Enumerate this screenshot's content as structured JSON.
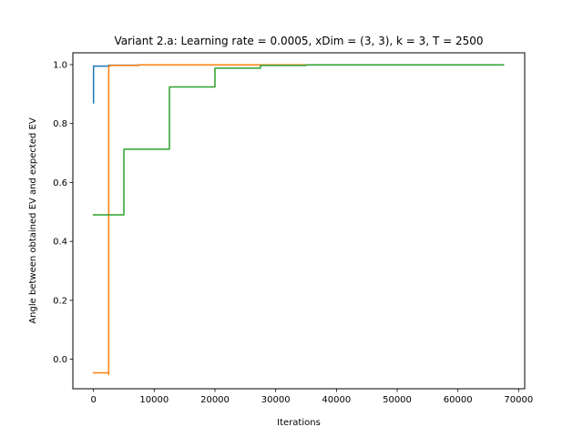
{
  "chart_data": {
    "type": "line",
    "title": "Variant 2.a: Learning rate = 0.0005, xDim = (3, 3), k = 3, T = 2500",
    "xlabel": "Iterations",
    "ylabel": "Angle between obtained EV and expected EV",
    "xlim": [
      -3400,
      71000
    ],
    "ylim": [
      -0.1,
      1.04
    ],
    "xticks": [
      0,
      10000,
      20000,
      30000,
      40000,
      50000,
      60000,
      70000
    ],
    "xtick_labels": [
      "0",
      "10000",
      "20000",
      "30000",
      "40000",
      "50000",
      "60000",
      "70000"
    ],
    "yticks": [
      0.0,
      0.2,
      0.4,
      0.6,
      0.8,
      1.0
    ],
    "ytick_labels": [
      "0.0",
      "0.2",
      "0.4",
      "0.6",
      "0.8",
      "1.0"
    ],
    "grid": false,
    "legend": "none",
    "series": [
      {
        "color": "#1f77b4",
        "x": [
          0,
          0,
          2500,
          2500,
          7500,
          7500,
          67500
        ],
        "y": [
          0.87,
          0.995,
          0.995,
          0.998,
          0.998,
          0.999,
          0.999
        ]
      },
      {
        "color": "#ff7f0e",
        "x": [
          0,
          2500,
          2500,
          2500,
          2700,
          2700,
          7500,
          7500,
          27500,
          27500,
          67500
        ],
        "y": [
          -0.046,
          -0.046,
          -0.052,
          0.995,
          0.995,
          0.997,
          0.997,
          0.999,
          0.999,
          0.999,
          0.999
        ]
      },
      {
        "color": "#2ca02c",
        "x": [
          0,
          5000,
          5000,
          12500,
          12500,
          20000,
          20000,
          27500,
          27500,
          35000,
          35000,
          67500
        ],
        "y": [
          0.49,
          0.49,
          0.713,
          0.713,
          0.924,
          0.924,
          0.988,
          0.988,
          0.997,
          0.997,
          0.999,
          0.999
        ]
      }
    ]
  }
}
